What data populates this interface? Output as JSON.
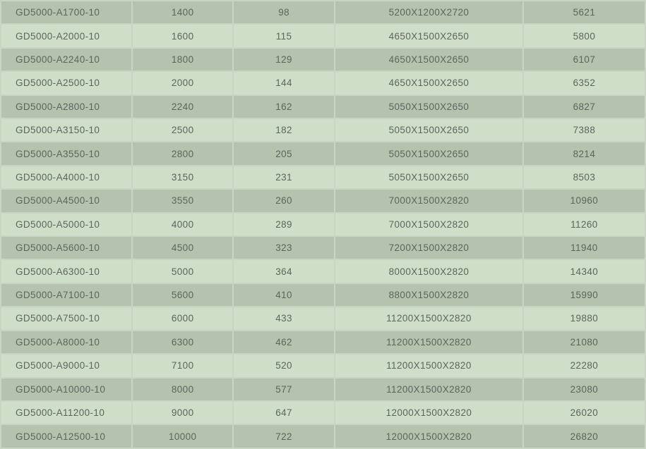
{
  "style": {
    "row_dark": "#b4c2ae",
    "row_light": "#cfdec6",
    "grid_color": "#c9d4c2",
    "text_color": "#5e645e"
  },
  "chart_data": {
    "type": "table",
    "title": "",
    "header_visible": false,
    "stripe_pattern": "odd-rows-dark",
    "rows": [
      [
        "GD5000-A1700-10",
        "1400",
        "98",
        "5200X1200X2720",
        "5621"
      ],
      [
        "GD5000-A2000-10",
        "1600",
        "115",
        "4650X1500X2650",
        "5800"
      ],
      [
        "GD5000-A2240-10",
        "1800",
        "129",
        "4650X1500X2650",
        "6107"
      ],
      [
        "GD5000-A2500-10",
        "2000",
        "144",
        "4650X1500X2650",
        "6352"
      ],
      [
        "GD5000-A2800-10",
        "2240",
        "162",
        "5050X1500X2650",
        "6827"
      ],
      [
        "GD5000-A3150-10",
        "2500",
        "182",
        "5050X1500X2650",
        "7388"
      ],
      [
        "GD5000-A3550-10",
        "2800",
        "205",
        "5050X1500X2650",
        "8214"
      ],
      [
        "GD5000-A4000-10",
        "3150",
        "231",
        "5050X1500X2650",
        "8503"
      ],
      [
        "GD5000-A4500-10",
        "3550",
        "260",
        "7000X1500X2820",
        "10960"
      ],
      [
        "GD5000-A5000-10",
        "4000",
        "289",
        "7000X1500X2820",
        "11260"
      ],
      [
        "GD5000-A5600-10",
        "4500",
        "323",
        "7200X1500X2820",
        "11940"
      ],
      [
        "GD5000-A6300-10",
        "5000",
        "364",
        "8000X1500X2820",
        "14340"
      ],
      [
        "GD5000-A7100-10",
        "5600",
        "410",
        "8800X1500X2820",
        "15990"
      ],
      [
        "GD5000-A7500-10",
        "6000",
        "433",
        "11200X1500X2820",
        "19880"
      ],
      [
        "GD5000-A8000-10",
        "6300",
        "462",
        "11200X1500X2820",
        "21080"
      ],
      [
        "GD5000-A9000-10",
        "7100",
        "520",
        "11200X1500X2820",
        "22280"
      ],
      [
        "GD5000-A10000-10",
        "8000",
        "577",
        "11200X1500X2820",
        "23080"
      ],
      [
        "GD5000-A11200-10",
        "9000",
        "647",
        "12000X1500X2820",
        "26020"
      ],
      [
        "GD5000-A12500-10",
        "10000",
        "722",
        "12000X1500X2820",
        "26820"
      ]
    ]
  }
}
